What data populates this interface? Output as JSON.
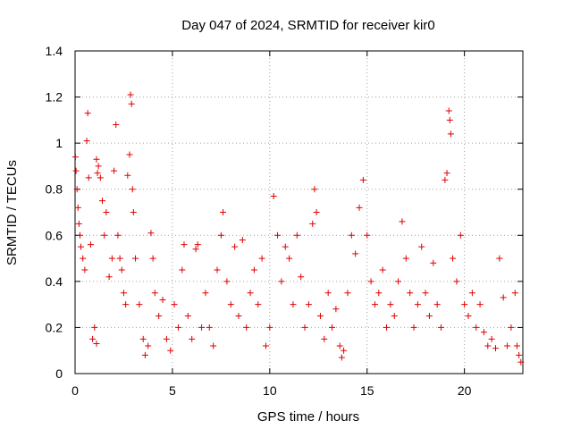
{
  "chart_data": {
    "type": "scatter",
    "title": "Day 047 of 2024, SRMTID for receiver kir0",
    "xlabel": "GPS time / hours",
    "ylabel": "SRMTID / TECUs",
    "xlim": [
      0,
      23
    ],
    "ylim": [
      0,
      1.4
    ],
    "x_ticks": [
      0,
      5,
      10,
      15,
      20
    ],
    "x_tick_labels": [
      "0",
      "5",
      "10",
      "15",
      "20"
    ],
    "y_ticks": [
      0,
      0.2,
      0.4,
      0.6,
      0.8,
      1.0,
      1.2,
      1.4
    ],
    "y_tick_labels": [
      "0",
      "0.2",
      "0.4",
      "0.6",
      "0.8",
      "1",
      "1.2",
      "1.4"
    ],
    "grid": true,
    "marker": "+",
    "color": "#e00000",
    "series": [
      {
        "name": "SRMTID",
        "points": [
          [
            0.02,
            0.94
          ],
          [
            0.05,
            0.88
          ],
          [
            0.1,
            0.8
          ],
          [
            0.15,
            0.72
          ],
          [
            0.2,
            0.65
          ],
          [
            0.25,
            0.6
          ],
          [
            0.3,
            0.55
          ],
          [
            0.4,
            0.5
          ],
          [
            0.5,
            0.45
          ],
          [
            0.6,
            1.01
          ],
          [
            0.65,
            1.13
          ],
          [
            0.7,
            0.85
          ],
          [
            0.8,
            0.56
          ],
          [
            0.9,
            0.15
          ],
          [
            1.0,
            0.2
          ],
          [
            1.1,
            0.13
          ],
          [
            1.1,
            0.93
          ],
          [
            1.15,
            0.87
          ],
          [
            1.2,
            0.9
          ],
          [
            1.3,
            0.85
          ],
          [
            1.4,
            0.75
          ],
          [
            1.5,
            0.6
          ],
          [
            1.6,
            0.7
          ],
          [
            1.75,
            0.42
          ],
          [
            1.9,
            0.5
          ],
          [
            2.0,
            0.88
          ],
          [
            2.1,
            1.08
          ],
          [
            2.2,
            0.6
          ],
          [
            2.3,
            0.5
          ],
          [
            2.4,
            0.45
          ],
          [
            2.5,
            0.35
          ],
          [
            2.6,
            0.3
          ],
          [
            2.7,
            0.86
          ],
          [
            2.8,
            0.95
          ],
          [
            2.85,
            1.21
          ],
          [
            2.9,
            1.17
          ],
          [
            2.95,
            0.8
          ],
          [
            3.0,
            0.7
          ],
          [
            3.1,
            0.5
          ],
          [
            3.3,
            0.3
          ],
          [
            3.5,
            0.15
          ],
          [
            3.6,
            0.08
          ],
          [
            3.75,
            0.12
          ],
          [
            3.9,
            0.61
          ],
          [
            4.0,
            0.5
          ],
          [
            4.1,
            0.35
          ],
          [
            4.3,
            0.25
          ],
          [
            4.5,
            0.32
          ],
          [
            4.7,
            0.15
          ],
          [
            4.9,
            0.1
          ],
          [
            5.1,
            0.3
          ],
          [
            5.3,
            0.2
          ],
          [
            5.5,
            0.45
          ],
          [
            5.6,
            0.56
          ],
          [
            5.8,
            0.25
          ],
          [
            6.0,
            0.15
          ],
          [
            6.2,
            0.54
          ],
          [
            6.3,
            0.56
          ],
          [
            6.5,
            0.2
          ],
          [
            6.7,
            0.35
          ],
          [
            6.9,
            0.2
          ],
          [
            7.1,
            0.12
          ],
          [
            7.3,
            0.45
          ],
          [
            7.5,
            0.6
          ],
          [
            7.6,
            0.7
          ],
          [
            7.8,
            0.4
          ],
          [
            8.0,
            0.3
          ],
          [
            8.2,
            0.55
          ],
          [
            8.4,
            0.25
          ],
          [
            8.6,
            0.58
          ],
          [
            8.8,
            0.2
          ],
          [
            9.0,
            0.35
          ],
          [
            9.2,
            0.45
          ],
          [
            9.4,
            0.3
          ],
          [
            9.6,
            0.5
          ],
          [
            9.8,
            0.12
          ],
          [
            10.0,
            0.2
          ],
          [
            10.2,
            0.77
          ],
          [
            10.4,
            0.6
          ],
          [
            10.6,
            0.4
          ],
          [
            10.8,
            0.55
          ],
          [
            11.0,
            0.5
          ],
          [
            11.2,
            0.3
          ],
          [
            11.4,
            0.6
          ],
          [
            11.6,
            0.42
          ],
          [
            11.8,
            0.2
          ],
          [
            12.0,
            0.3
          ],
          [
            12.2,
            0.65
          ],
          [
            12.3,
            0.8
          ],
          [
            12.4,
            0.7
          ],
          [
            12.6,
            0.25
          ],
          [
            12.8,
            0.15
          ],
          [
            13.0,
            0.35
          ],
          [
            13.2,
            0.2
          ],
          [
            13.4,
            0.28
          ],
          [
            13.6,
            0.12
          ],
          [
            13.7,
            0.07
          ],
          [
            13.8,
            0.1
          ],
          [
            14.0,
            0.35
          ],
          [
            14.2,
            0.6
          ],
          [
            14.4,
            0.52
          ],
          [
            14.6,
            0.72
          ],
          [
            14.8,
            0.84
          ],
          [
            15.0,
            0.6
          ],
          [
            15.2,
            0.4
          ],
          [
            15.4,
            0.3
          ],
          [
            15.6,
            0.35
          ],
          [
            15.8,
            0.45
          ],
          [
            16.0,
            0.2
          ],
          [
            16.2,
            0.3
          ],
          [
            16.4,
            0.25
          ],
          [
            16.6,
            0.4
          ],
          [
            16.8,
            0.66
          ],
          [
            17.0,
            0.5
          ],
          [
            17.2,
            0.35
          ],
          [
            17.4,
            0.2
          ],
          [
            17.6,
            0.3
          ],
          [
            17.8,
            0.55
          ],
          [
            18.0,
            0.35
          ],
          [
            18.2,
            0.25
          ],
          [
            18.4,
            0.48
          ],
          [
            18.6,
            0.3
          ],
          [
            18.8,
            0.2
          ],
          [
            19.0,
            0.84
          ],
          [
            19.1,
            0.87
          ],
          [
            19.2,
            1.14
          ],
          [
            19.25,
            1.1
          ],
          [
            19.3,
            1.04
          ],
          [
            19.4,
            0.5
          ],
          [
            19.6,
            0.4
          ],
          [
            19.8,
            0.6
          ],
          [
            20.0,
            0.3
          ],
          [
            20.2,
            0.25
          ],
          [
            20.4,
            0.35
          ],
          [
            20.6,
            0.2
          ],
          [
            20.8,
            0.3
          ],
          [
            21.0,
            0.18
          ],
          [
            21.2,
            0.12
          ],
          [
            21.4,
            0.15
          ],
          [
            21.6,
            0.11
          ],
          [
            21.8,
            0.5
          ],
          [
            22.0,
            0.33
          ],
          [
            22.2,
            0.12
          ],
          [
            22.4,
            0.2
          ],
          [
            22.6,
            0.35
          ],
          [
            22.7,
            0.12
          ],
          [
            22.8,
            0.08
          ],
          [
            22.9,
            0.05
          ]
        ]
      }
    ]
  }
}
